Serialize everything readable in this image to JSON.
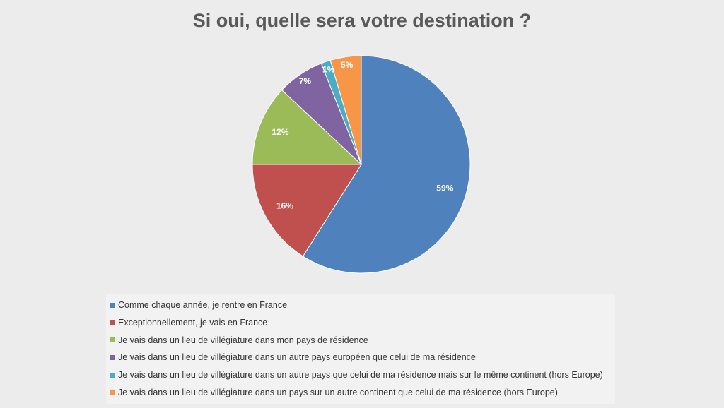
{
  "chart_data": {
    "type": "pie",
    "title": "Si oui, quelle sera votre destination ?",
    "legend_position": "bottom",
    "slices": [
      {
        "label": "Comme chaque année, je rentre en France",
        "value": 59,
        "display": "59%",
        "color": "#4f81bd"
      },
      {
        "label": "Exceptionnellement, je vais en France",
        "value": 16,
        "display": "16%",
        "color": "#c0504d"
      },
      {
        "label": "Je vais dans un lieu de villégiature dans mon pays de résidence",
        "value": 12,
        "display": "12%",
        "color": "#9bbb59"
      },
      {
        "label": "Je vais dans un lieu de villégiature dans un autre pays européen que celui de ma résidence",
        "value": 7,
        "display": "7%",
        "color": "#8064a2"
      },
      {
        "label": "Je vais dans un lieu de villégiature dans un autre pays que celui de ma résidence mais sur le même continent (hors Europe)",
        "value": 1.4,
        "display": "1%",
        "color": "#4bacc6"
      },
      {
        "label": "Je vais dans un lieu de villégiature dans un pays sur un autre continent que celui de ma résidence (hors Europe)",
        "value": 4.6,
        "display": "5%",
        "color": "#f79646"
      }
    ]
  }
}
